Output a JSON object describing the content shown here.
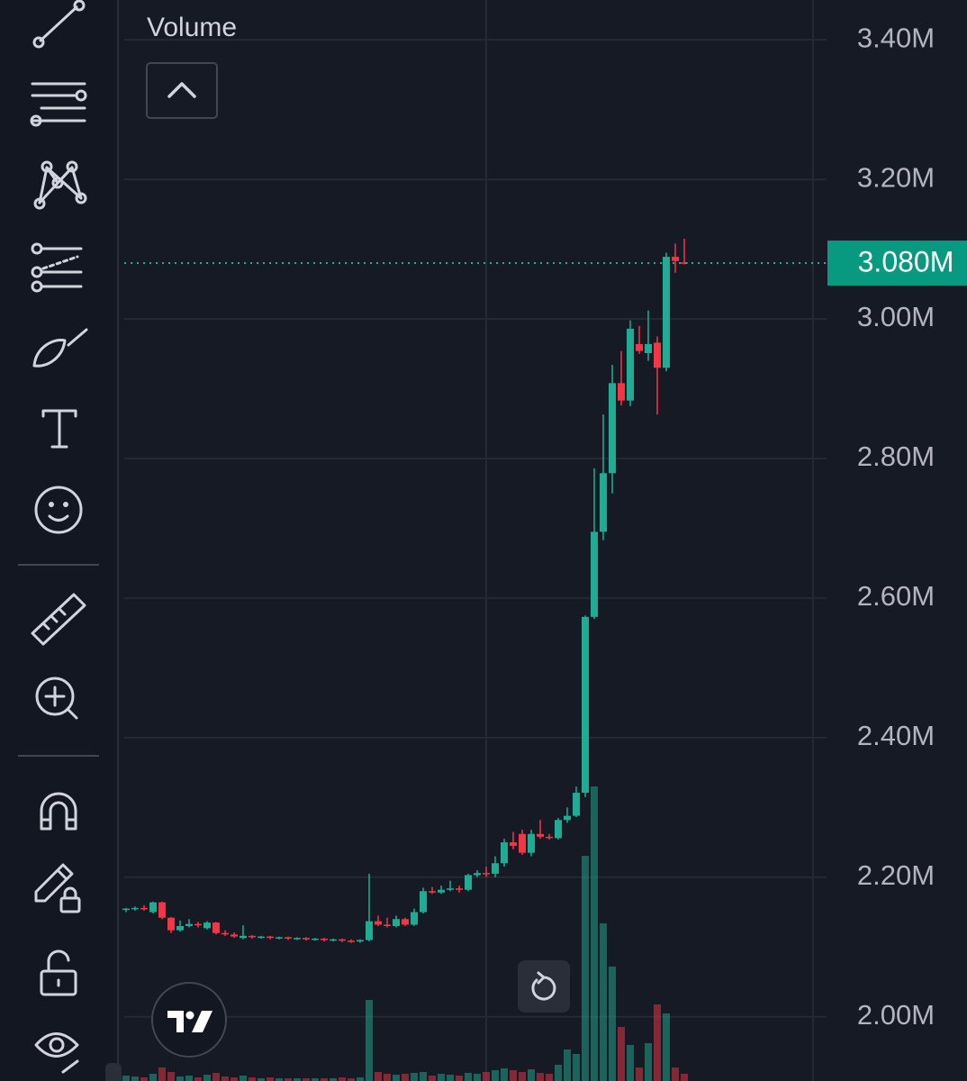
{
  "chart_data": {
    "type": "candlestick",
    "legend_label": "Volume",
    "up_color": "#22ab94",
    "down_color": "#f23645",
    "ylim": [
      1908000,
      3457000
    ],
    "yticks": [
      {
        "value": 3400000,
        "label": "3.40M"
      },
      {
        "value": 3200000,
        "label": "3.20M"
      },
      {
        "value": 3000000,
        "label": "3.00M"
      },
      {
        "value": 2800000,
        "label": "2.80M"
      },
      {
        "value": 2600000,
        "label": "2.60M"
      },
      {
        "value": 2400000,
        "label": "2.40M"
      },
      {
        "value": 2200000,
        "label": "2.20M"
      },
      {
        "value": 2000000,
        "label": "2.00M"
      }
    ],
    "grid": true,
    "last_price": {
      "value": 3080000,
      "label": "3.080M"
    },
    "open": [
      2153000,
      2155000,
      2156000,
      2150000,
      2164000,
      2142000,
      2124000,
      2130000,
      2133000,
      2127000,
      2135000,
      2120000,
      2118000,
      2113000,
      2116000,
      2114000,
      2115000,
      2113000,
      2114000,
      2112000,
      2113000,
      2111000,
      2112000,
      2110000,
      2111000,
      2109000,
      2108000,
      2110000,
      2137000,
      2132000,
      2130000,
      2140000,
      2132000,
      2150000,
      2180000,
      2178000,
      2182000,
      2184000,
      2182000,
      2203000,
      2206000,
      2205000,
      2220000,
      2250000,
      2262000,
      2235000,
      2262000,
      2258000,
      2256000,
      2282000,
      2288000,
      2321000,
      2573000,
      2695000,
      2779000,
      2908000,
      2883000,
      2964000,
      2951000,
      2966000,
      2930000,
      3089000,
      3081000
    ],
    "high": [
      2156000,
      2158000,
      2160000,
      2165000,
      2165000,
      2143000,
      2138000,
      2140000,
      2136000,
      2137000,
      2136000,
      2124000,
      2121000,
      2131000,
      2117000,
      2116000,
      2116000,
      2115000,
      2115000,
      2114000,
      2114000,
      2113000,
      2113000,
      2112000,
      2112000,
      2111000,
      2111000,
      2205000,
      2145000,
      2142000,
      2145000,
      2142000,
      2155000,
      2185000,
      2186000,
      2188000,
      2195000,
      2188000,
      2205000,
      2210000,
      2215000,
      2230000,
      2255000,
      2265000,
      2268000,
      2268000,
      2282000,
      2262000,
      2285000,
      2300000,
      2330000,
      2575000,
      2786000,
      2863000,
      2934000,
      2954000,
      2998000,
      2990000,
      3012000,
      2975000,
      3095000,
      3108000,
      3115000
    ],
    "low": [
      2150000,
      2152000,
      2152000,
      2148000,
      2140000,
      2120000,
      2122000,
      2128000,
      2128000,
      2125000,
      2118000,
      2116000,
      2113000,
      2111000,
      2112000,
      2112000,
      2111000,
      2111000,
      2110000,
      2110000,
      2109000,
      2109000,
      2108000,
      2108000,
      2107000,
      2106000,
      2106000,
      2108000,
      2130000,
      2128000,
      2128000,
      2130000,
      2130000,
      2148000,
      2176000,
      2176000,
      2180000,
      2178000,
      2180000,
      2200000,
      2200000,
      2200000,
      2215000,
      2240000,
      2232000,
      2230000,
      2255000,
      2254000,
      2254000,
      2278000,
      2286000,
      2315000,
      2570000,
      2683000,
      2750000,
      2876000,
      2875000,
      2950000,
      2940000,
      2863000,
      2925000,
      3066000,
      3078000
    ],
    "close": [
      2155000,
      2156000,
      2154000,
      2164000,
      2142000,
      2124000,
      2130000,
      2133000,
      2131000,
      2135000,
      2120000,
      2118000,
      2115000,
      2116000,
      2114000,
      2115000,
      2113000,
      2114000,
      2112000,
      2113000,
      2111000,
      2112000,
      2110000,
      2111000,
      2109000,
      2108000,
      2110000,
      2137000,
      2132000,
      2130000,
      2140000,
      2132000,
      2150000,
      2180000,
      2178000,
      2182000,
      2184000,
      2182000,
      2203000,
      2206000,
      2205000,
      2220000,
      2250000,
      2245000,
      2235000,
      2262000,
      2258000,
      2256000,
      2282000,
      2288000,
      2321000,
      2573000,
      2695000,
      2779000,
      2908000,
      2883000,
      2986000,
      2954000,
      2964000,
      2930000,
      3089000,
      3083000,
      3080000
    ],
    "volume": [
      6,
      5,
      4,
      8,
      15,
      10,
      5,
      6,
      4,
      7,
      9,
      5,
      4,
      6,
      4,
      3,
      4,
      3,
      3,
      3,
      3,
      3,
      3,
      3,
      4,
      3,
      4,
      90,
      10,
      8,
      7,
      8,
      9,
      10,
      6,
      8,
      7,
      6,
      9,
      8,
      10,
      12,
      14,
      12,
      10,
      13,
      9,
      8,
      18,
      35,
      30,
      250,
      327,
      175,
      127,
      60,
      40,
      15,
      42,
      85,
      75,
      15,
      8
    ]
  }
}
